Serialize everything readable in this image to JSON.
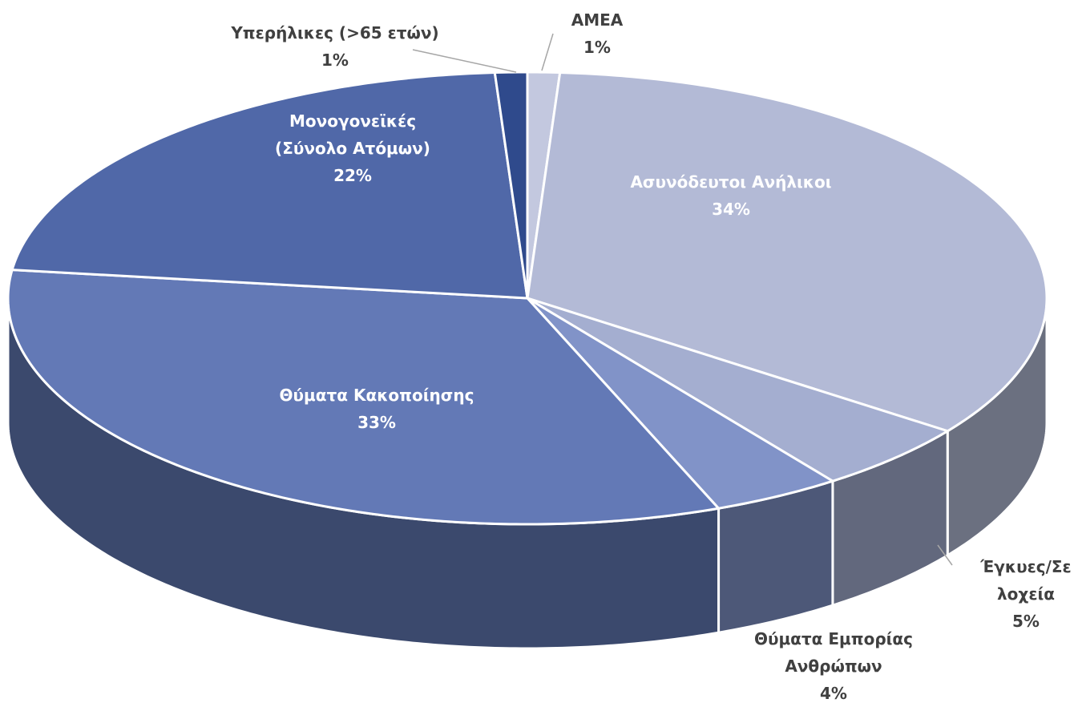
{
  "chart_data": {
    "type": "pie3d",
    "categories": [
      "ΑΜΕΑ",
      "Ασυνόδευτοι Ανήλικοι",
      "Έγκυες/Σε λοχεία",
      "Θύματα Εμπορίας Ανθρώπων",
      "Θύματα Κακοποίησης",
      "Μονογονεϊκές (Σύνολο Ατόμων)",
      "Υπερήλικες (>65 ετών)"
    ],
    "values": [
      1,
      34,
      5,
      4,
      33,
      22,
      1
    ],
    "value_labels": [
      "1%",
      "34%",
      "5%",
      "4%",
      "33%",
      "22%",
      "1%"
    ],
    "colors": [
      "#c3c8df",
      "#b3bad6",
      "#a4aed0",
      "#8193c8",
      "#6379b6",
      "#5068a8",
      "#2f4a8c"
    ]
  }
}
